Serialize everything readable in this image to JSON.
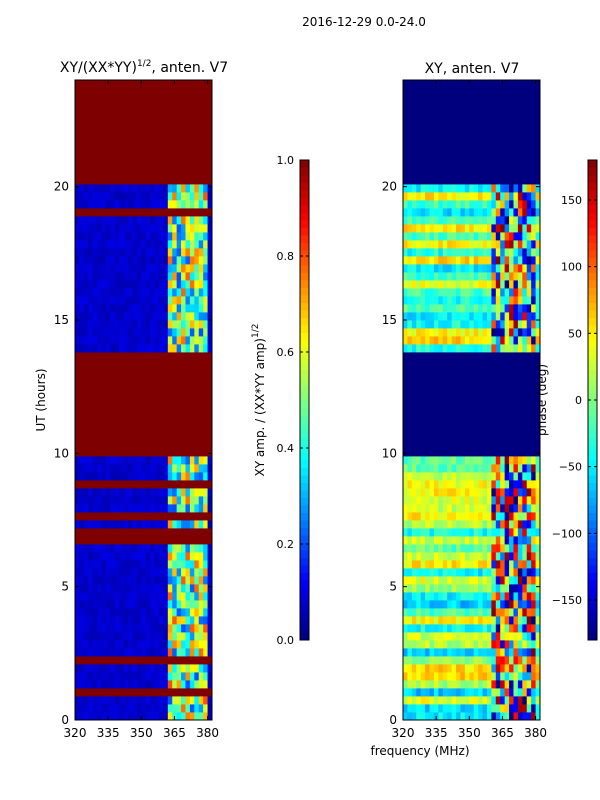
{
  "figure": {
    "suptitle": "2016-12-29 0.0-24.0",
    "shared_xlabel": "frequency (MHz)"
  },
  "colors": {
    "jet": [
      "#00007f",
      "#0000ff",
      "#007fff",
      "#00ffff",
      "#7fff7f",
      "#ffff00",
      "#ff7f00",
      "#ff0000",
      "#7f0000"
    ]
  },
  "chart_data": [
    {
      "type": "heatmap",
      "title": "XY/(XX*YY)¹ᐟ², anten. V7",
      "title_main": "XY/(XX*YY)",
      "title_sup": "1/2",
      "title_tail": ", anten. V7",
      "xlabel": "",
      "ylabel": "UT (hours)",
      "xlim": [
        320,
        382
      ],
      "ylim": [
        0,
        24
      ],
      "xticks": [
        320,
        335,
        350,
        365,
        380
      ],
      "yticks": [
        0,
        5,
        10,
        15,
        20
      ],
      "colorbar": {
        "label_main": "XY amp. / (XX*YY amp)",
        "label_sup": "1/2",
        "vmin": 0.0,
        "vmax": 1.0,
        "ticks": [
          "0.0",
          "0.2",
          "0.4",
          "0.6",
          "0.8",
          "1.0"
        ],
        "tick_values": [
          0.0,
          0.2,
          0.4,
          0.6,
          0.8,
          1.0
        ]
      },
      "background_value": 0.05,
      "flagged_value": 1.0,
      "flagged_ut_ranges": [
        [
          0,
          0.1
        ],
        [
          1.0,
          1.1
        ],
        [
          1.35,
          1.45
        ],
        [
          1.7,
          1.8
        ],
        [
          2.2,
          2.45
        ],
        [
          6.7,
          6.9
        ],
        [
          7.0,
          7.2
        ],
        [
          7.6,
          7.7
        ],
        [
          8.8,
          8.9
        ],
        [
          9.8,
          13.8
        ],
        [
          17.3,
          17.5
        ],
        [
          18.2,
          18.3
        ],
        [
          19.0,
          19.1
        ],
        [
          20.2,
          24
        ]
      ],
      "rfi_bands_mhz": [
        [
          362,
          367
        ],
        [
          368,
          371
        ],
        [
          372,
          375
        ],
        [
          376,
          379
        ]
      ]
    },
    {
      "type": "heatmap",
      "title": "XY, anten. V7",
      "xlabel": "frequency (MHz)",
      "ylabel": "",
      "xlim": [
        320,
        382
      ],
      "ylim": [
        0,
        24
      ],
      "xticks": [
        320,
        335,
        350,
        365,
        380
      ],
      "yticks": [
        0,
        5,
        10,
        15,
        20
      ],
      "colorbar": {
        "label": "phase (deg)",
        "vmin": -180,
        "vmax": 180,
        "ticks": [
          "−150",
          "−100",
          "−50",
          "0",
          "50",
          "100",
          "150"
        ],
        "tick_values": [
          -150,
          -100,
          -50,
          0,
          50,
          100,
          150
        ]
      },
      "flagged_value": -180,
      "flagged_ut_ranges": [
        [
          9.8,
          13.8
        ],
        [
          20.2,
          24
        ]
      ],
      "rfi_bands_mhz": [
        [
          360,
          371
        ],
        [
          372,
          380
        ]
      ]
    }
  ]
}
